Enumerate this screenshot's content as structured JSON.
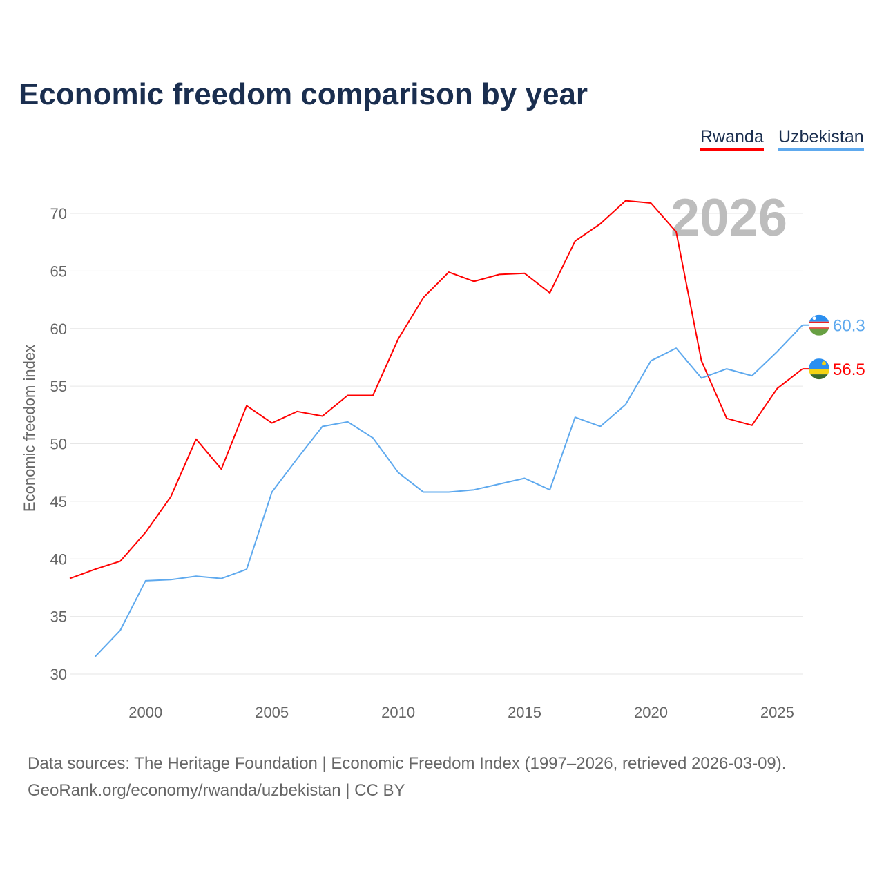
{
  "chart_data": {
    "type": "line",
    "title": "Economic freedom comparison by year",
    "ylabel": "Economic freedom index",
    "xlabel": "",
    "ylim": [
      30,
      70
    ],
    "xlim": [
      1997,
      2026
    ],
    "yticks": [
      "30",
      "35",
      "40",
      "45",
      "50",
      "55",
      "60",
      "65",
      "70"
    ],
    "xticks": [
      "2000",
      "2005",
      "2010",
      "2015",
      "2020",
      "2025"
    ],
    "year_label": "2026",
    "grid": true,
    "legend_placement": "top-right",
    "series": [
      {
        "name": "Rwanda",
        "color": "#ff0000",
        "end_label": "56.5",
        "x": [
          1997,
          1998,
          1999,
          2000,
          2001,
          2002,
          2003,
          2004,
          2005,
          2006,
          2007,
          2008,
          2009,
          2010,
          2011,
          2012,
          2013,
          2014,
          2015,
          2016,
          2017,
          2018,
          2019,
          2020,
          2021,
          2022,
          2023,
          2024,
          2025,
          2026
        ],
        "values": [
          38.3,
          39.1,
          39.8,
          42.3,
          45.4,
          50.4,
          47.8,
          53.3,
          51.8,
          52.8,
          52.4,
          54.2,
          54.2,
          59.1,
          62.7,
          64.9,
          64.1,
          64.7,
          64.8,
          63.1,
          67.6,
          69.1,
          71.1,
          70.9,
          68.4,
          57.2,
          52.2,
          51.6,
          54.8,
          56.5
        ]
      },
      {
        "name": "Uzbekistan",
        "color": "#5ea9ee",
        "end_label": "60.3",
        "x": [
          1998,
          1999,
          2000,
          2001,
          2002,
          2003,
          2004,
          2005,
          2006,
          2007,
          2008,
          2009,
          2010,
          2011,
          2012,
          2013,
          2014,
          2015,
          2016,
          2017,
          2018,
          2019,
          2020,
          2021,
          2022,
          2023,
          2024,
          2025,
          2026
        ],
        "values": [
          31.5,
          33.8,
          38.1,
          38.2,
          38.5,
          38.3,
          39.1,
          45.8,
          48.7,
          51.5,
          51.9,
          50.5,
          47.5,
          45.8,
          45.8,
          46.0,
          46.5,
          47.0,
          46.0,
          52.3,
          51.5,
          53.4,
          57.2,
          58.3,
          55.7,
          56.5,
          55.9,
          58.0,
          60.3
        ]
      }
    ]
  },
  "footer": {
    "line1": "Data sources: The Heritage Foundation | Economic Freedom Index (1997–2026, retrieved 2026-03-09).",
    "line2": "GeoRank.org/economy/rwanda/uzbekistan | CC BY"
  }
}
